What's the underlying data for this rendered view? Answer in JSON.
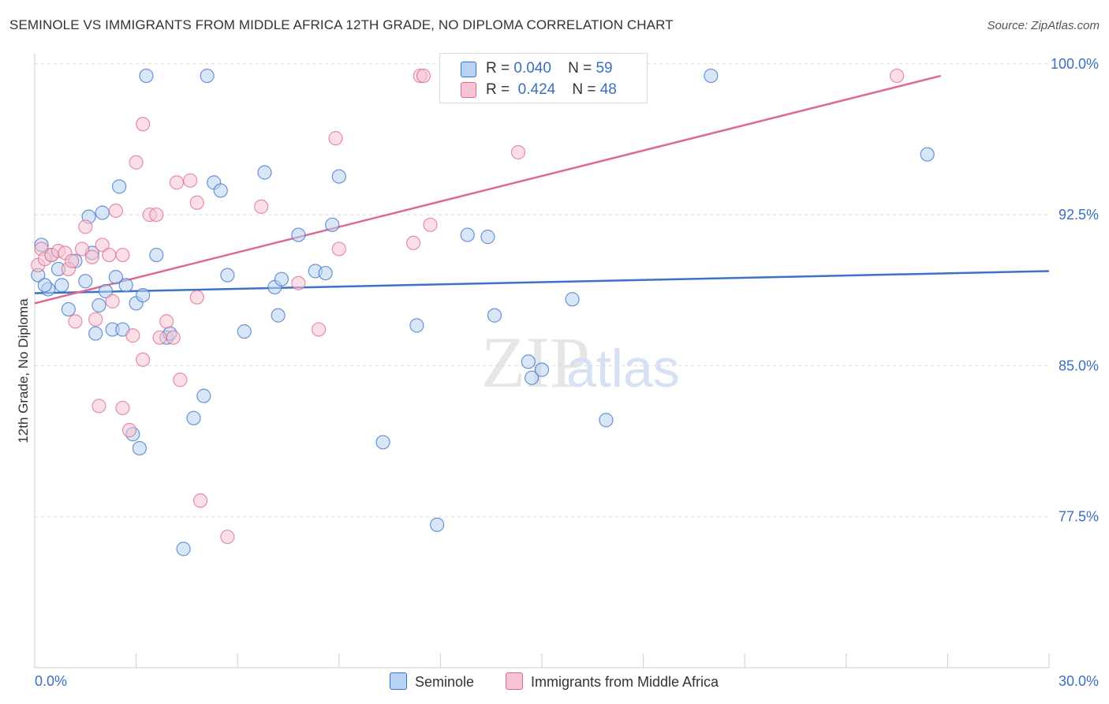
{
  "title": "SEMINOLE VS IMMIGRANTS FROM MIDDLE AFRICA 12TH GRADE, NO DIPLOMA CORRELATION CHART",
  "source": "Source: ZipAtlas.com",
  "colors": {
    "blue": "#3a73c9",
    "blue_fill": "#b9d1f3",
    "pink": "#e06890",
    "pink_fill": "#f6c4d4",
    "tick_label": "#3a6fc4"
  },
  "legend": {
    "rows": [
      {
        "r_label": "R =",
        "r_value": "0.040",
        "n_label": "N =",
        "n_value": "59"
      },
      {
        "r_label": "R =",
        "r_value": "0.424",
        "n_label": "N =",
        "n_value": "48"
      }
    ]
  },
  "chart_data": {
    "type": "scatter",
    "title": "SEMINOLE VS IMMIGRANTS FROM MIDDLE AFRICA 12TH GRADE, NO DIPLOMA CORRELATION CHART",
    "xlabel": "",
    "ylabel": "12th Grade, No Diploma",
    "xlim": [
      0,
      30
    ],
    "ylim": [
      70.0,
      100.5
    ],
    "x_tick_labels": [
      "0.0%",
      "30.0%"
    ],
    "y_ticks": [
      77.5,
      85.0,
      92.5,
      100.0
    ],
    "y_tick_labels": [
      "77.5%",
      "85.0%",
      "92.5%",
      "100.0%"
    ],
    "grid": true,
    "legend_position": "top-center",
    "series": [
      {
        "name": "Seminole",
        "color": "#3a73c9",
        "trend": {
          "x": [
            0,
            30
          ],
          "y": [
            88.6,
            89.7
          ]
        },
        "points": [
          [
            0.2,
            91.0
          ],
          [
            0.1,
            89.5
          ],
          [
            0.4,
            88.8
          ],
          [
            0.5,
            90.5
          ],
          [
            0.7,
            89.8
          ],
          [
            0.8,
            89.0
          ],
          [
            1.0,
            87.8
          ],
          [
            1.2,
            90.2
          ],
          [
            1.5,
            89.2
          ],
          [
            1.6,
            92.4
          ],
          [
            1.7,
            90.6
          ],
          [
            1.8,
            86.6
          ],
          [
            2.0,
            92.6
          ],
          [
            2.1,
            88.7
          ],
          [
            2.3,
            86.8
          ],
          [
            2.4,
            89.4
          ],
          [
            2.5,
            93.9
          ],
          [
            2.6,
            86.8
          ],
          [
            2.7,
            89.0
          ],
          [
            2.9,
            81.6
          ],
          [
            3.0,
            88.1
          ],
          [
            3.1,
            80.9
          ],
          [
            3.2,
            88.5
          ],
          [
            3.3,
            99.4
          ],
          [
            3.6,
            90.5
          ],
          [
            3.9,
            86.4
          ],
          [
            4.0,
            86.6
          ],
          [
            4.4,
            75.9
          ],
          [
            4.7,
            82.4
          ],
          [
            5.0,
            83.5
          ],
          [
            5.1,
            99.4
          ],
          [
            5.3,
            94.1
          ],
          [
            5.5,
            93.7
          ],
          [
            5.7,
            89.5
          ],
          [
            6.2,
            86.7
          ],
          [
            6.8,
            94.6
          ],
          [
            7.1,
            88.9
          ],
          [
            7.2,
            87.5
          ],
          [
            7.3,
            89.3
          ],
          [
            7.8,
            91.5
          ],
          [
            8.3,
            89.7
          ],
          [
            8.6,
            89.6
          ],
          [
            8.8,
            92.0
          ],
          [
            9.0,
            94.4
          ],
          [
            10.3,
            81.2
          ],
          [
            11.3,
            87.0
          ],
          [
            11.9,
            77.1
          ],
          [
            12.8,
            91.5
          ],
          [
            13.4,
            91.4
          ],
          [
            13.6,
            87.5
          ],
          [
            14.6,
            85.2
          ],
          [
            14.7,
            84.4
          ],
          [
            15.0,
            84.8
          ],
          [
            15.9,
            88.3
          ],
          [
            16.9,
            82.3
          ],
          [
            20.0,
            99.4
          ],
          [
            26.4,
            95.5
          ],
          [
            0.3,
            89.0
          ],
          [
            1.9,
            88.0
          ]
        ]
      },
      {
        "name": "Immigrants from Middle Africa",
        "color": "#e06890",
        "trend": {
          "x": [
            0,
            26.8
          ],
          "y": [
            88.1,
            99.4
          ]
        },
        "points": [
          [
            0.1,
            90.0
          ],
          [
            0.2,
            90.8
          ],
          [
            0.3,
            90.3
          ],
          [
            0.5,
            90.5
          ],
          [
            0.7,
            90.7
          ],
          [
            0.9,
            90.6
          ],
          [
            1.0,
            89.8
          ],
          [
            1.1,
            90.2
          ],
          [
            1.2,
            87.2
          ],
          [
            1.4,
            90.8
          ],
          [
            1.5,
            91.9
          ],
          [
            1.7,
            90.4
          ],
          [
            1.8,
            87.3
          ],
          [
            1.9,
            83.0
          ],
          [
            2.0,
            91.0
          ],
          [
            2.2,
            90.5
          ],
          [
            2.3,
            88.2
          ],
          [
            2.4,
            92.7
          ],
          [
            2.6,
            90.5
          ],
          [
            2.6,
            82.9
          ],
          [
            2.8,
            81.8
          ],
          [
            2.9,
            86.5
          ],
          [
            3.0,
            95.1
          ],
          [
            3.2,
            85.3
          ],
          [
            3.2,
            97.0
          ],
          [
            3.4,
            92.5
          ],
          [
            3.6,
            92.5
          ],
          [
            3.7,
            86.4
          ],
          [
            3.9,
            87.2
          ],
          [
            4.1,
            86.4
          ],
          [
            4.2,
            94.1
          ],
          [
            4.3,
            84.3
          ],
          [
            4.6,
            94.2
          ],
          [
            4.8,
            88.4
          ],
          [
            4.8,
            93.1
          ],
          [
            4.9,
            78.3
          ],
          [
            5.7,
            76.5
          ],
          [
            6.7,
            92.9
          ],
          [
            7.8,
            89.1
          ],
          [
            8.4,
            86.8
          ],
          [
            8.9,
            96.3
          ],
          [
            9.0,
            90.8
          ],
          [
            11.2,
            91.1
          ],
          [
            11.4,
            99.4
          ],
          [
            11.5,
            99.4
          ],
          [
            11.7,
            92.0
          ],
          [
            14.3,
            95.6
          ],
          [
            25.5,
            99.4
          ]
        ]
      }
    ]
  }
}
